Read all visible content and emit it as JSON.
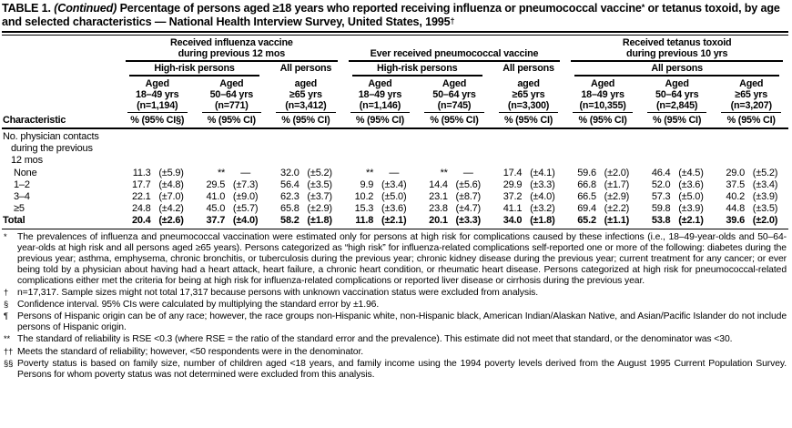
{
  "title": {
    "label": "TABLE 1.",
    "continued": "(Continued)",
    "text_a": "Percentage of persons aged ≥18 years who reported receiving influenza or pneumococcal vaccine",
    "sup_a": "*",
    "text_b": "or tetanus toxoid, by age and selected characteristics — National Health Interview Survey, United States, 1995",
    "sup_b": "†"
  },
  "table": {
    "characteristic_header": "Characteristic",
    "groups": [
      {
        "title": [
          "Received influenza vaccine",
          "during previous 12 mos"
        ],
        "subgroups": [
          {
            "label": "High-risk persons"
          },
          {
            "label": "All persons"
          }
        ],
        "columns": [
          {
            "aged": "Aged",
            "range": "18–49 yrs",
            "n": "(n=1,194)",
            "pct": "% (95% CI§)"
          },
          {
            "aged": "Aged",
            "range": "50–64 yrs",
            "n": "(n=771)",
            "pct": "% (95% CI)"
          },
          {
            "aged": "aged",
            "range": "≥65 yrs",
            "n": "(n=3,412)",
            "pct": "% (95% CI)"
          }
        ]
      },
      {
        "title": [
          "Ever received pneumococcal vaccine"
        ],
        "subgroups": [
          {
            "label": "High-risk persons"
          },
          {
            "label": "All persons"
          }
        ],
        "columns": [
          {
            "aged": "Aged",
            "range": "18–49 yrs",
            "n": "(n=1,146)",
            "pct": "% (95% CI)"
          },
          {
            "aged": "Aged",
            "range": "50–64 yrs",
            "n": "(n=745)",
            "pct": "% (95% CI)"
          },
          {
            "aged": "aged",
            "range": "≥65 yrs",
            "n": "(n=3,300)",
            "pct": "% (95% CI)"
          }
        ]
      },
      {
        "title": [
          "Received tetanus toxoid",
          "during previous 10 yrs"
        ],
        "subgroups": [
          {
            "label": "All persons"
          }
        ],
        "columns": [
          {
            "aged": "Aged",
            "range": "18–49 yrs",
            "n": "(n=10,355)",
            "pct": "% (95% CI)"
          },
          {
            "aged": "Aged",
            "range": "50–64 yrs",
            "n": "(n=2,845)",
            "pct": "% (95% CI)"
          },
          {
            "aged": "Aged",
            "range": "≥65 yrs",
            "n": "(n=3,207)",
            "pct": "% (95% CI)"
          }
        ]
      }
    ],
    "rows": [
      {
        "type": "label",
        "lines": [
          "No. physician contacts",
          "during the previous",
          "12 mos"
        ]
      },
      {
        "type": "data",
        "label": "None",
        "indent": true,
        "bold": false,
        "cells": [
          [
            "11.3",
            "(±5.9)"
          ],
          [
            "**",
            "—"
          ],
          [
            "32.0",
            "(±5.2)"
          ],
          [
            "**",
            "—"
          ],
          [
            "**",
            "—"
          ],
          [
            "17.4",
            "(±4.1)"
          ],
          [
            "59.6",
            "(±2.0)"
          ],
          [
            "46.4",
            "(±4.5)"
          ],
          [
            "29.0",
            "(±5.2)"
          ]
        ]
      },
      {
        "type": "data",
        "label": "1–2",
        "indent": true,
        "bold": false,
        "cells": [
          [
            "17.7",
            "(±4.8)"
          ],
          [
            "29.5",
            "(±7.3)"
          ],
          [
            "56.4",
            "(±3.5)"
          ],
          [
            "9.9",
            "(±3.4)"
          ],
          [
            "14.4",
            "(±5.6)"
          ],
          [
            "29.9",
            "(±3.3)"
          ],
          [
            "66.8",
            "(±1.7)"
          ],
          [
            "52.0",
            "(±3.6)"
          ],
          [
            "37.5",
            "(±3.4)"
          ]
        ]
      },
      {
        "type": "data",
        "label": "3–4",
        "indent": true,
        "bold": false,
        "cells": [
          [
            "22.1",
            "(±7.0)"
          ],
          [
            "41.0",
            "(±9.0)"
          ],
          [
            "62.3",
            "(±3.7)"
          ],
          [
            "10.2",
            "(±5.0)"
          ],
          [
            "23.1",
            "(±8.7)"
          ],
          [
            "37.2",
            "(±4.0)"
          ],
          [
            "66.5",
            "(±2.9)"
          ],
          [
            "57.3",
            "(±5.0)"
          ],
          [
            "40.2",
            "(±3.9)"
          ]
        ]
      },
      {
        "type": "data",
        "label": "≥5",
        "indent": true,
        "bold": false,
        "cells": [
          [
            "24.8",
            "(±4.2)"
          ],
          [
            "45.0",
            "(±5.7)"
          ],
          [
            "65.8",
            "(±2.9)"
          ],
          [
            "15.3",
            "(±3.6)"
          ],
          [
            "23.8",
            "(±4.7)"
          ],
          [
            "41.1",
            "(±3.2)"
          ],
          [
            "69.4",
            "(±2.2)"
          ],
          [
            "59.8",
            "(±3.9)"
          ],
          [
            "44.8",
            "(±3.5)"
          ]
        ]
      },
      {
        "type": "data",
        "label": "Total",
        "indent": false,
        "bold": true,
        "cells": [
          [
            "20.4",
            "(±2.6)"
          ],
          [
            "37.7",
            "(±4.0)"
          ],
          [
            "58.2",
            "(±1.8)"
          ],
          [
            "11.8",
            "(±2.1)"
          ],
          [
            "20.1",
            "(±3.3)"
          ],
          [
            "34.0",
            "(±1.8)"
          ],
          [
            "65.2",
            "(±1.1)"
          ],
          [
            "53.8",
            "(±2.1)"
          ],
          [
            "39.6",
            "(±2.0)"
          ]
        ]
      }
    ]
  },
  "footnotes": [
    {
      "marker": "*",
      "text": "The prevalences of influenza and pneumococcal vaccination were estimated only for persons at high risk for complications caused by these infections (i.e., 18–49-year-olds and 50–64-year-olds at high risk and all persons aged ≥65 years). Persons categorized as “high risk” for influenza-related complications self-reported one or more of the following: diabetes during the previous year; asthma, emphysema, chronic bronchitis, or tuberculosis during the previous year; chronic kidney disease during the previous year; current treatment for any cancer; or ever being told by a physician about having had a heart attack, heart failure, a chronic heart condition, or rheumatic heart disease. Persons categorized at high risk for pneumococcal-related complications either met the criteria for being at high risk for influenza-related complications or reported liver disease or cirrhosis during the previous year."
    },
    {
      "marker": "†",
      "text": "n=17,317. Sample sizes might not total 17,317 because persons with unknown vaccination status were excluded from analysis."
    },
    {
      "marker": "§",
      "text": "Confidence interval. 95% CIs were calculated by multiplying the standard error by ±1.96."
    },
    {
      "marker": "¶",
      "text": "Persons of Hispanic origin can be of any race; however, the race groups non-Hispanic white, non-Hispanic black, American Indian/Alaskan Native, and Asian/Pacific Islander do not include persons of Hispanic origin."
    },
    {
      "marker": "**",
      "text": "The standard of reliability is RSE <0.3 (where RSE = the ratio of the standard error and the prevalence). This estimate did not meet that standard, or the denominator was <30."
    },
    {
      "marker": "††",
      "text": "Meets the standard of reliability; however, <50 respondents were in the denominator."
    },
    {
      "marker": "§§",
      "text": "Poverty status is based on family size, number of children aged <18 years, and family income using the 1994 poverty levels derived from the August 1995 Current Population Survey. Persons for whom poverty status was not determined were excluded from this analysis."
    }
  ]
}
